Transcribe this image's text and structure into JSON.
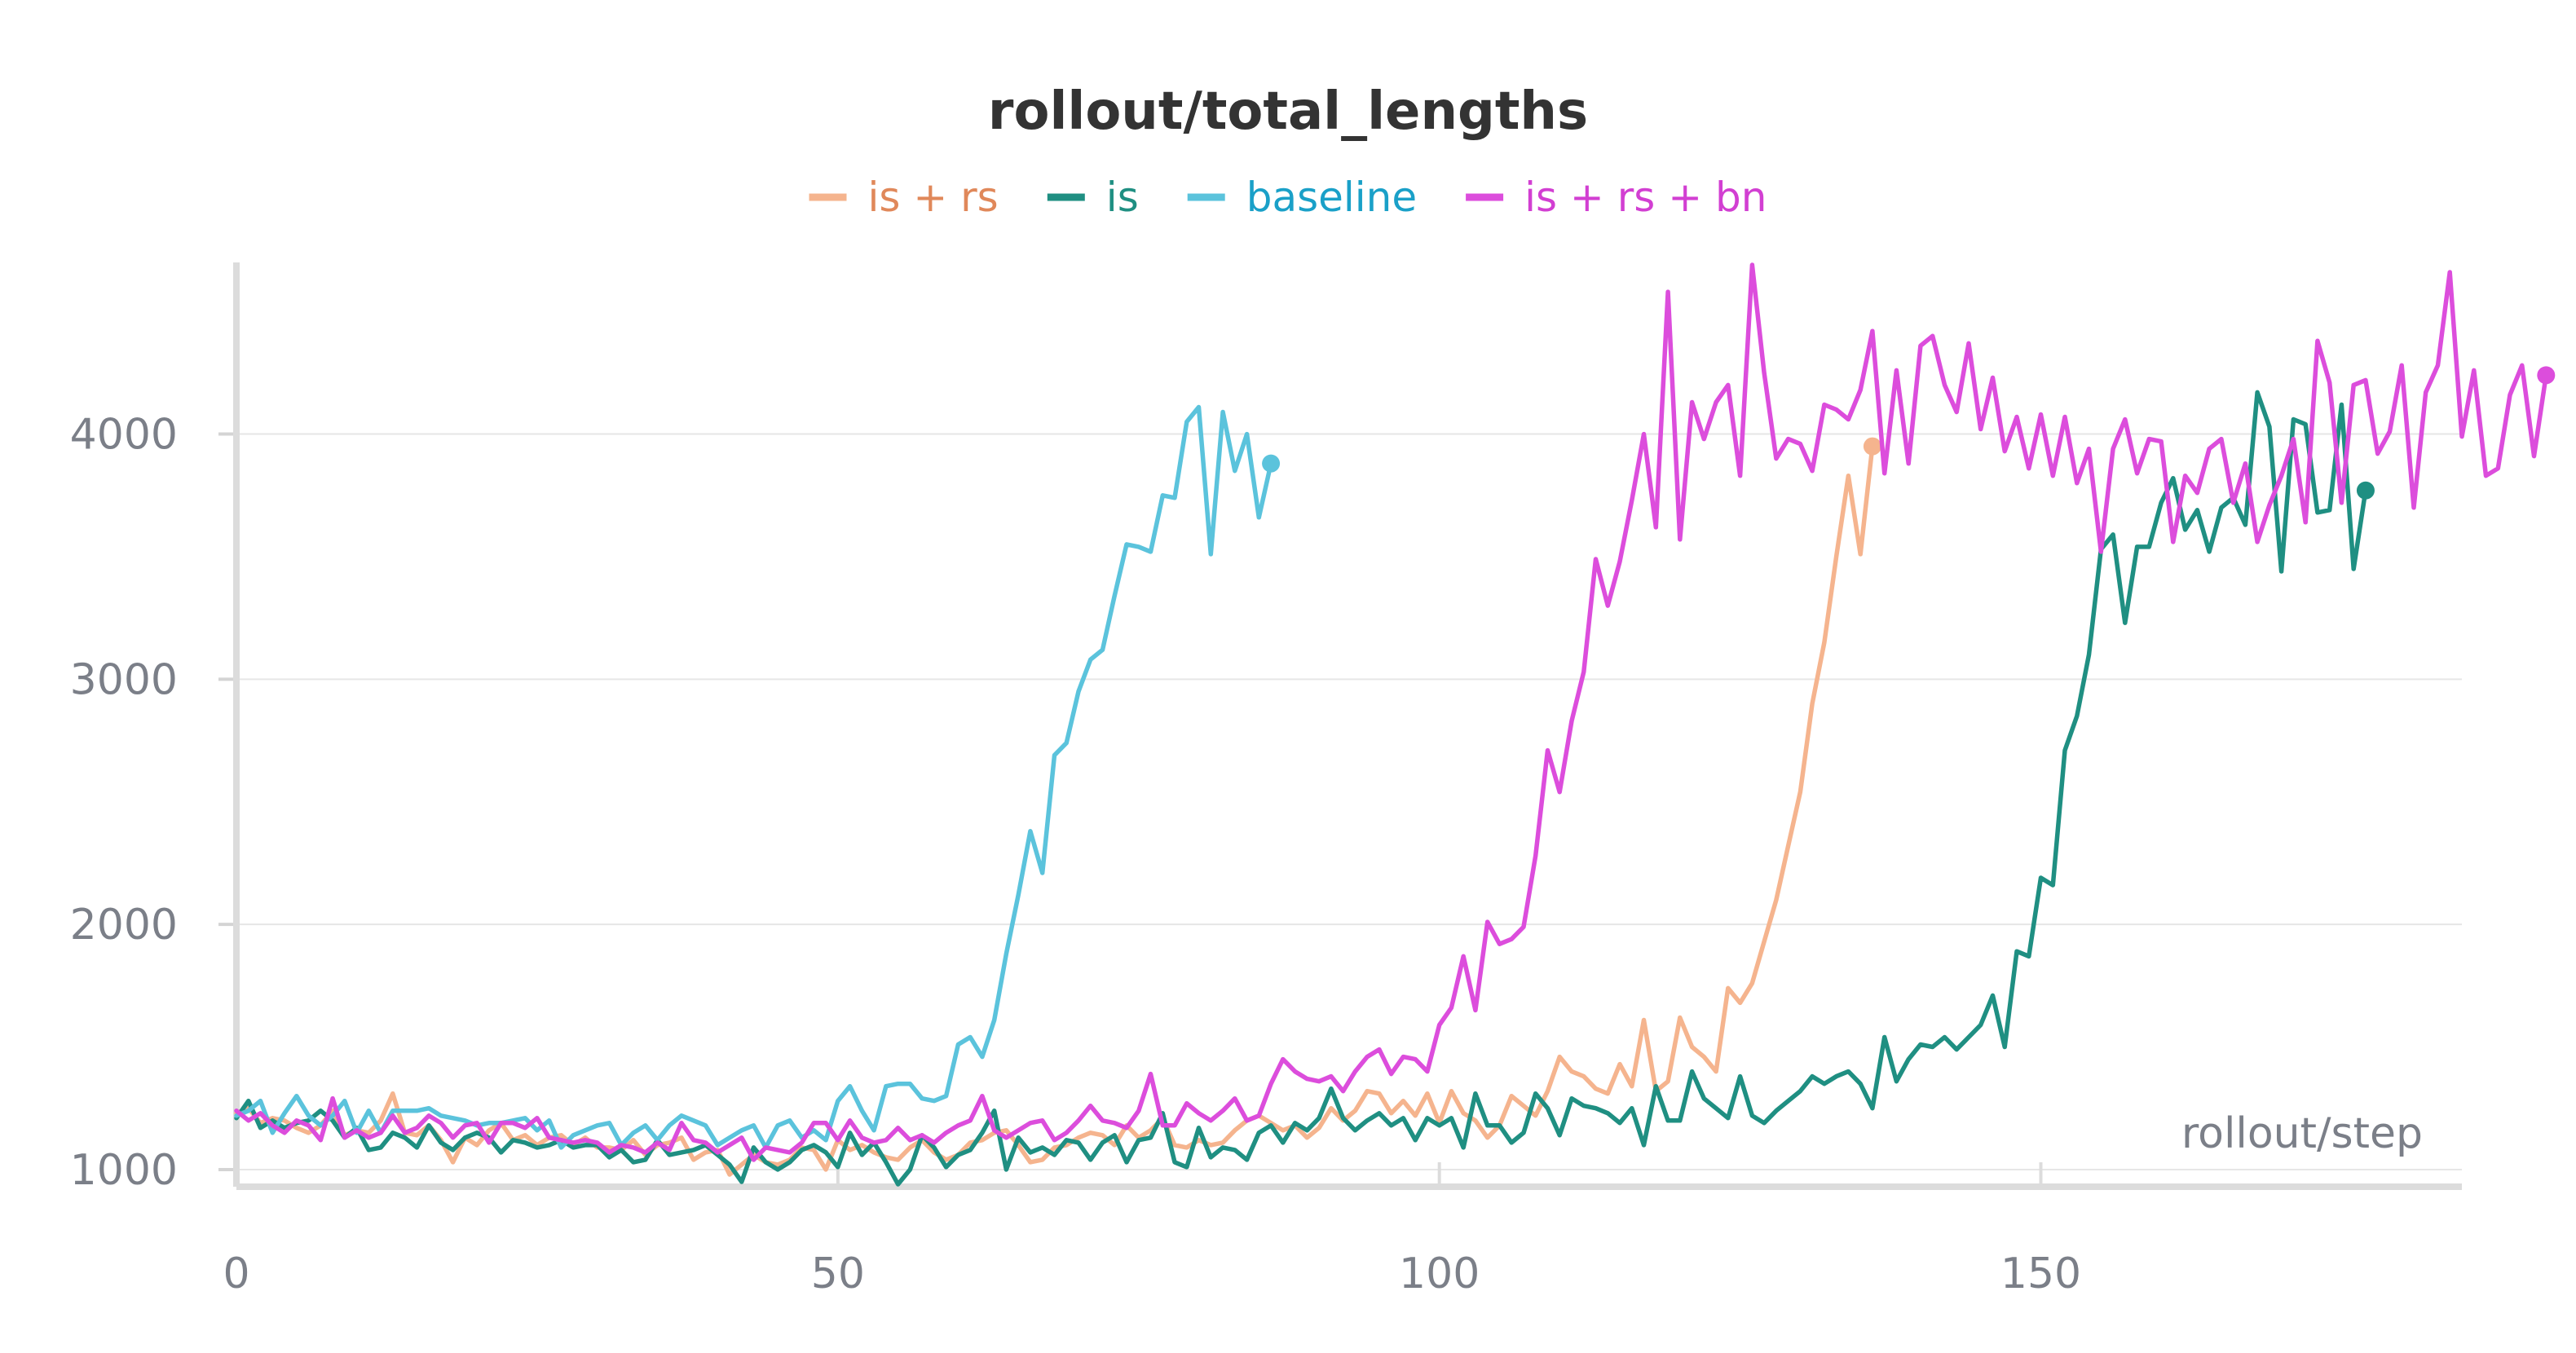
{
  "chart_data": {
    "type": "line",
    "title": "rollout/total_lengths",
    "xlabel": "rollout/step",
    "ylabel": "",
    "xlim": [
      0,
      185
    ],
    "ylim": [
      930,
      4700
    ],
    "xticks": [
      0,
      50,
      100,
      150
    ],
    "yticks": [
      1000,
      2000,
      3000,
      4000
    ],
    "grid": true,
    "legend_position": "top",
    "series": [
      {
        "name": "is + rs",
        "color": "#f5b48e",
        "legend_text_color": "#e0885a",
        "step_start": 0,
        "values": [
          1230,
          1250,
          1190,
          1210,
          1200,
          1170,
          1150,
          1180,
          1240,
          1140,
          1160,
          1150,
          1200,
          1310,
          1150,
          1140,
          1180,
          1120,
          1030,
          1130,
          1100,
          1160,
          1190,
          1120,
          1140,
          1100,
          1130,
          1140,
          1100,
          1130,
          1090,
          1090,
          1080,
          1120,
          1060,
          1100,
          1110,
          1130,
          1040,
          1070,
          1080,
          980,
          1020,
          1060,
          1030,
          1020,
          1040,
          1090,
          1080,
          1000,
          1120,
          1080,
          1100,
          1070,
          1050,
          1040,
          1090,
          1120,
          1070,
          1040,
          1060,
          1110,
          1120,
          1150,
          1160,
          1100,
          1030,
          1040,
          1090,
          1100,
          1130,
          1150,
          1140,
          1100,
          1180,
          1130,
          1160,
          1210,
          1100,
          1090,
          1120,
          1100,
          1110,
          1160,
          1200,
          1220,
          1190,
          1160,
          1180,
          1130,
          1170,
          1250,
          1200,
          1240,
          1320,
          1310,
          1230,
          1280,
          1220,
          1310,
          1190,
          1320,
          1230,
          1200,
          1130,
          1180,
          1300,
          1260,
          1220,
          1320,
          1460,
          1400,
          1380,
          1330,
          1310,
          1430,
          1340,
          1610,
          1320,
          1360,
          1620,
          1500,
          1460,
          1400,
          1740,
          1680,
          1760,
          1930,
          2100,
          2320,
          2540,
          2900,
          3150,
          3500,
          3830,
          3510,
          3950
        ]
      },
      {
        "name": "is",
        "color": "#1f8f82",
        "legend_text_color": "#1f8f82",
        "step_start": 0,
        "values": [
          1210,
          1280,
          1170,
          1200,
          1170,
          1190,
          1200,
          1240,
          1200,
          1130,
          1170,
          1080,
          1090,
          1150,
          1130,
          1090,
          1180,
          1110,
          1080,
          1130,
          1150,
          1130,
          1070,
          1120,
          1110,
          1090,
          1100,
          1120,
          1090,
          1100,
          1100,
          1050,
          1080,
          1030,
          1040,
          1120,
          1060,
          1070,
          1080,
          1100,
          1060,
          1020,
          950,
          1090,
          1030,
          1000,
          1030,
          1080,
          1100,
          1070,
          1010,
          1150,
          1060,
          1110,
          1030,
          940,
          1000,
          1140,
          1090,
          1010,
          1060,
          1080,
          1150,
          1240,
          1000,
          1130,
          1070,
          1090,
          1060,
          1120,
          1110,
          1040,
          1110,
          1140,
          1030,
          1120,
          1130,
          1230,
          1030,
          1010,
          1170,
          1050,
          1090,
          1080,
          1040,
          1150,
          1180,
          1110,
          1190,
          1160,
          1210,
          1330,
          1210,
          1160,
          1200,
          1230,
          1180,
          1210,
          1120,
          1210,
          1180,
          1210,
          1090,
          1310,
          1180,
          1180,
          1110,
          1150,
          1310,
          1250,
          1140,
          1290,
          1260,
          1250,
          1230,
          1190,
          1250,
          1100,
          1340,
          1200,
          1200,
          1400,
          1290,
          1250,
          1210,
          1380,
          1220,
          1190,
          1240,
          1280,
          1320,
          1380,
          1350,
          1380,
          1400,
          1350,
          1250,
          1540,
          1360,
          1450,
          1510,
          1500,
          1540,
          1490,
          1540,
          1590,
          1710,
          1500,
          1890,
          1870,
          2190,
          2160,
          2710,
          2850,
          3100,
          3530,
          3590,
          3230,
          3540,
          3540,
          3720,
          3820,
          3610,
          3690,
          3520,
          3700,
          3740,
          3630,
          4170,
          4030,
          3440,
          4060,
          4040,
          3680,
          3690,
          4120,
          3450,
          3770
        ]
      },
      {
        "name": "baseline",
        "color": "#5bc3dc",
        "legend_text_color": "#1aa0c8",
        "step_start": 0,
        "values": [
          1220,
          1240,
          1280,
          1150,
          1230,
          1300,
          1220,
          1180,
          1220,
          1280,
          1150,
          1240,
          1150,
          1240,
          1240,
          1240,
          1250,
          1220,
          1210,
          1200,
          1180,
          1190,
          1190,
          1200,
          1210,
          1160,
          1200,
          1090,
          1140,
          1160,
          1180,
          1190,
          1100,
          1150,
          1180,
          1120,
          1180,
          1220,
          1200,
          1180,
          1100,
          1130,
          1160,
          1180,
          1090,
          1180,
          1200,
          1130,
          1160,
          1120,
          1280,
          1340,
          1240,
          1160,
          1340,
          1350,
          1350,
          1290,
          1280,
          1300,
          1510,
          1540,
          1460,
          1610,
          1880,
          2120,
          2380,
          2210,
          2690,
          2740,
          2950,
          3080,
          3120,
          3340,
          3550,
          3540,
          3520,
          3750,
          3740,
          4050,
          4110,
          3510,
          4090,
          3850,
          4000,
          3660,
          3880
        ]
      },
      {
        "name": "is + rs + bn",
        "color": "#dc4ddc",
        "legend_text_color": "#d23fd2",
        "step_start": 0,
        "values": [
          1240,
          1200,
          1230,
          1180,
          1150,
          1200,
          1180,
          1120,
          1290,
          1130,
          1160,
          1130,
          1150,
          1220,
          1150,
          1170,
          1220,
          1190,
          1130,
          1180,
          1190,
          1110,
          1190,
          1190,
          1170,
          1210,
          1130,
          1120,
          1110,
          1120,
          1110,
          1070,
          1100,
          1090,
          1070,
          1110,
          1080,
          1190,
          1120,
          1110,
          1070,
          1100,
          1130,
          1040,
          1090,
          1080,
          1070,
          1110,
          1190,
          1190,
          1120,
          1200,
          1130,
          1110,
          1120,
          1170,
          1120,
          1140,
          1110,
          1150,
          1180,
          1200,
          1300,
          1160,
          1130,
          1160,
          1190,
          1200,
          1120,
          1150,
          1200,
          1260,
          1200,
          1190,
          1170,
          1240,
          1390,
          1180,
          1180,
          1270,
          1230,
          1200,
          1240,
          1290,
          1200,
          1220,
          1350,
          1450,
          1400,
          1370,
          1360,
          1380,
          1320,
          1400,
          1460,
          1490,
          1390,
          1460,
          1450,
          1400,
          1590,
          1660,
          1870,
          1650,
          2010,
          1920,
          1940,
          1990,
          2280,
          2710,
          2540,
          2830,
          3030,
          3490,
          3300,
          3480,
          3730,
          4000,
          3620,
          4580,
          3570,
          4130,
          3980,
          4130,
          4200,
          3830,
          4690,
          4250,
          3900,
          3980,
          3960,
          3850,
          4120,
          4100,
          4060,
          4180,
          4420,
          3840,
          4260,
          3880,
          4360,
          4400,
          4200,
          4090,
          4370,
          4020,
          4230,
          3930,
          4070,
          3860,
          4080,
          3830,
          4070,
          3800,
          3940,
          3520,
          3940,
          4060,
          3840,
          3980,
          3970,
          3560,
          3830,
          3760,
          3940,
          3980,
          3720,
          3880,
          3560,
          3710,
          3830,
          3980,
          3640,
          4380,
          4210,
          3720,
          4200,
          4220,
          3920,
          4010,
          4280,
          3700,
          4170,
          4280,
          4660,
          3990,
          4260,
          3830,
          3860,
          4160,
          4280,
          3910,
          4240
        ]
      }
    ]
  }
}
